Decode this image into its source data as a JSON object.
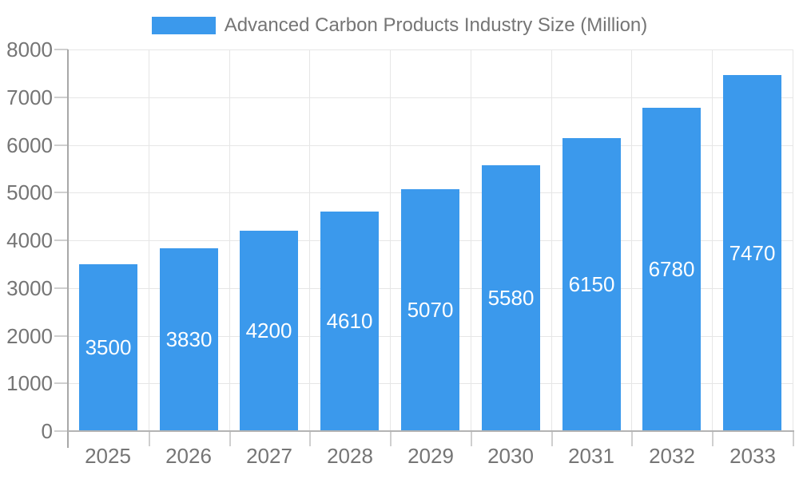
{
  "chart_data": {
    "type": "bar",
    "title": "Advanced Carbon Products Industry Size (Million)",
    "categories": [
      "2025",
      "2026",
      "2027",
      "2028",
      "2029",
      "2030",
      "2031",
      "2032",
      "2033"
    ],
    "values": [
      3500,
      3830,
      4200,
      4610,
      5070,
      5580,
      6150,
      6780,
      7470
    ],
    "xlabel": "",
    "ylabel": "",
    "ylim": [
      0,
      8000
    ],
    "ytick_step": 1000,
    "ytick_labels": [
      "0",
      "1000",
      "2000",
      "3000",
      "4000",
      "5000",
      "6000",
      "7000",
      "8000"
    ],
    "grid": true,
    "legend_position": "top",
    "bar_label_position": "inside-center",
    "colors": {
      "bar": "#3B99EC",
      "bar_label_text": "#FFFFFF",
      "axis_label_text": "#757575",
      "legend_text": "#757575",
      "gridline": "#E6E6E6",
      "tick": "#CFCFCF",
      "y_axis_line": "#A8A8A8",
      "x_axis_line": "#B3B3B3"
    }
  }
}
